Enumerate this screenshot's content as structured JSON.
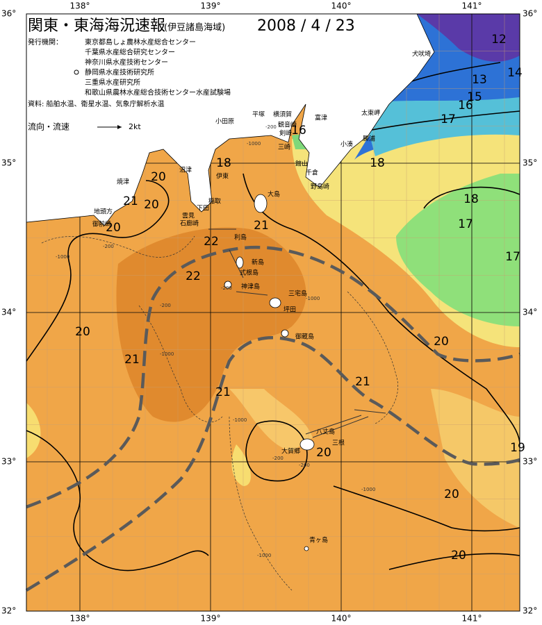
{
  "header": {
    "title": "関東・東海海況速報",
    "subtitle": "(伊豆諸島海域)",
    "date": "2008 / 4 / 23"
  },
  "publishers": {
    "label": "発行機関：",
    "items": [
      "東京都島しょ農林水産総合センター",
      "千葉県水産総合研究センター",
      "神奈川県水産技術センター",
      "静岡県水産技術研究所",
      "三重県水産研究所",
      "和歌山県農林水産総合技術センター水産試験場"
    ]
  },
  "sources": "資料: 船舶水温、衛星水温、気象庁解析水温",
  "current_legend": {
    "label": "流向・流速",
    "speed": "2kt"
  },
  "lon_ticks": [
    {
      "value": 138,
      "label": "138°"
    },
    {
      "value": 139,
      "label": "139°"
    },
    {
      "value": 140,
      "label": "140°"
    },
    {
      "value": 141,
      "label": "141°"
    }
  ],
  "lat_ticks": [
    {
      "value": 36,
      "label": "36°"
    },
    {
      "value": 35,
      "label": "35°"
    },
    {
      "value": 34,
      "label": "34°"
    },
    {
      "value": 33,
      "label": "33°"
    },
    {
      "value": 32,
      "label": "32°"
    }
  ],
  "isotherm_labels": [
    12,
    14,
    13,
    15,
    16,
    17,
    16,
    18,
    18,
    18,
    17,
    17,
    20,
    21,
    20,
    20,
    22,
    21,
    22,
    20,
    21,
    20,
    21,
    21,
    19,
    20,
    20,
    20
  ],
  "depth_labels": [
    -1000,
    -200,
    -200,
    -1000,
    -200,
    -1000,
    -200,
    -1000,
    -1000,
    -200,
    -1000,
    -1000,
    -200
  ],
  "places": [
    "犬吠埼",
    "太東岬",
    "勝浦",
    "小湊",
    "館山",
    "千倉",
    "野島崎",
    "平塚",
    "横須賀",
    "富津",
    "観音崎",
    "剣崎",
    "三崎",
    "小田原",
    "伊東",
    "沼津",
    "焼津",
    "地頭方",
    "御前崎",
    "稲取",
    "下田",
    "雲見",
    "石廊崎",
    "大島",
    "利島",
    "新島",
    "式根島",
    "神津島",
    "三宅島",
    "坪田",
    "御蔵島",
    "八丈島",
    "三根",
    "大賀郷",
    "青ヶ島"
  ]
}
